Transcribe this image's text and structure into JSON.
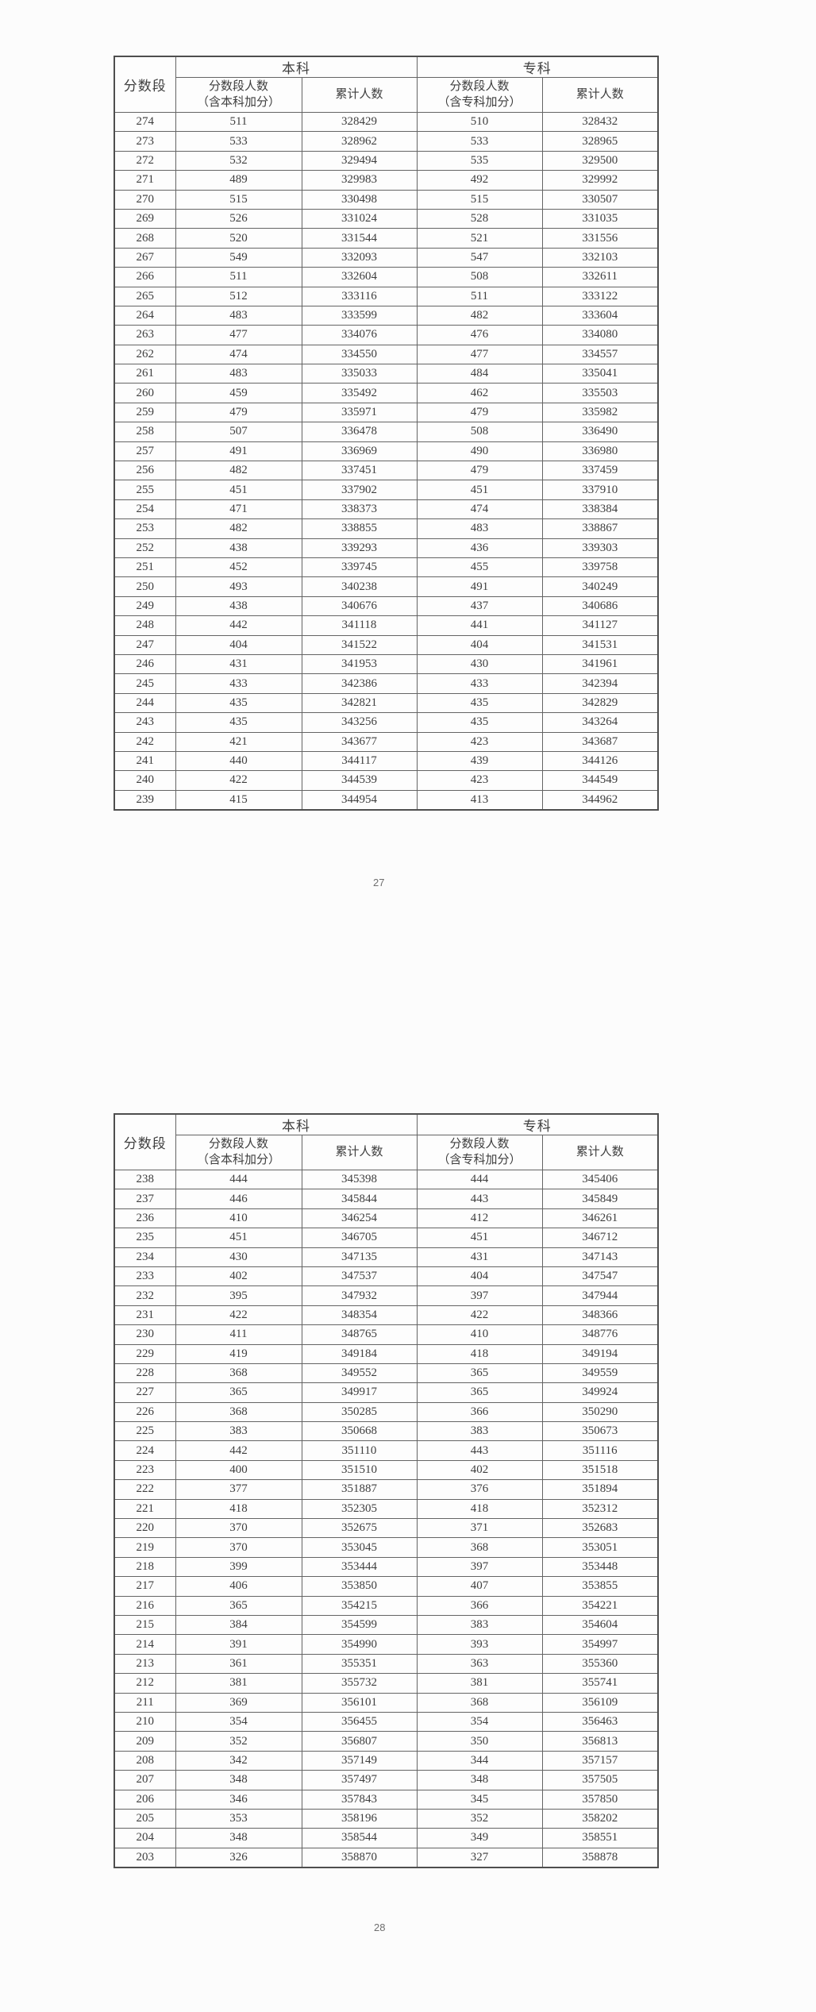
{
  "document": {
    "background_color": "#fcfcfc",
    "text_color": "#3e3e3e",
    "border_color": "#646464",
    "page_number_color": "#6e6e6e"
  },
  "header_labels": {
    "score_band": "分数段",
    "undergrad_group": "本科",
    "college_group": "专科",
    "undergrad_count": "分数段人数\n（含本科加分）",
    "college_count": "分数段人数\n（含专科加分）",
    "cumulative": "累计人数"
  },
  "pages": [
    {
      "page_number": "27",
      "rows": [
        [
          274,
          511,
          328429,
          510,
          328432
        ],
        [
          273,
          533,
          328962,
          533,
          328965
        ],
        [
          272,
          532,
          329494,
          535,
          329500
        ],
        [
          271,
          489,
          329983,
          492,
          329992
        ],
        [
          270,
          515,
          330498,
          515,
          330507
        ],
        [
          269,
          526,
          331024,
          528,
          331035
        ],
        [
          268,
          520,
          331544,
          521,
          331556
        ],
        [
          267,
          549,
          332093,
          547,
          332103
        ],
        [
          266,
          511,
          332604,
          508,
          332611
        ],
        [
          265,
          512,
          333116,
          511,
          333122
        ],
        [
          264,
          483,
          333599,
          482,
          333604
        ],
        [
          263,
          477,
          334076,
          476,
          334080
        ],
        [
          262,
          474,
          334550,
          477,
          334557
        ],
        [
          261,
          483,
          335033,
          484,
          335041
        ],
        [
          260,
          459,
          335492,
          462,
          335503
        ],
        [
          259,
          479,
          335971,
          479,
          335982
        ],
        [
          258,
          507,
          336478,
          508,
          336490
        ],
        [
          257,
          491,
          336969,
          490,
          336980
        ],
        [
          256,
          482,
          337451,
          479,
          337459
        ],
        [
          255,
          451,
          337902,
          451,
          337910
        ],
        [
          254,
          471,
          338373,
          474,
          338384
        ],
        [
          253,
          482,
          338855,
          483,
          338867
        ],
        [
          252,
          438,
          339293,
          436,
          339303
        ],
        [
          251,
          452,
          339745,
          455,
          339758
        ],
        [
          250,
          493,
          340238,
          491,
          340249
        ],
        [
          249,
          438,
          340676,
          437,
          340686
        ],
        [
          248,
          442,
          341118,
          441,
          341127
        ],
        [
          247,
          404,
          341522,
          404,
          341531
        ],
        [
          246,
          431,
          341953,
          430,
          341961
        ],
        [
          245,
          433,
          342386,
          433,
          342394
        ],
        [
          244,
          435,
          342821,
          435,
          342829
        ],
        [
          243,
          435,
          343256,
          435,
          343264
        ],
        [
          242,
          421,
          343677,
          423,
          343687
        ],
        [
          241,
          440,
          344117,
          439,
          344126
        ],
        [
          240,
          422,
          344539,
          423,
          344549
        ],
        [
          239,
          415,
          344954,
          413,
          344962
        ]
      ]
    },
    {
      "page_number": "28",
      "rows": [
        [
          238,
          444,
          345398,
          444,
          345406
        ],
        [
          237,
          446,
          345844,
          443,
          345849
        ],
        [
          236,
          410,
          346254,
          412,
          346261
        ],
        [
          235,
          451,
          346705,
          451,
          346712
        ],
        [
          234,
          430,
          347135,
          431,
          347143
        ],
        [
          233,
          402,
          347537,
          404,
          347547
        ],
        [
          232,
          395,
          347932,
          397,
          347944
        ],
        [
          231,
          422,
          348354,
          422,
          348366
        ],
        [
          230,
          411,
          348765,
          410,
          348776
        ],
        [
          229,
          419,
          349184,
          418,
          349194
        ],
        [
          228,
          368,
          349552,
          365,
          349559
        ],
        [
          227,
          365,
          349917,
          365,
          349924
        ],
        [
          226,
          368,
          350285,
          366,
          350290
        ],
        [
          225,
          383,
          350668,
          383,
          350673
        ],
        [
          224,
          442,
          351110,
          443,
          351116
        ],
        [
          223,
          400,
          351510,
          402,
          351518
        ],
        [
          222,
          377,
          351887,
          376,
          351894
        ],
        [
          221,
          418,
          352305,
          418,
          352312
        ],
        [
          220,
          370,
          352675,
          371,
          352683
        ],
        [
          219,
          370,
          353045,
          368,
          353051
        ],
        [
          218,
          399,
          353444,
          397,
          353448
        ],
        [
          217,
          406,
          353850,
          407,
          353855
        ],
        [
          216,
          365,
          354215,
          366,
          354221
        ],
        [
          215,
          384,
          354599,
          383,
          354604
        ],
        [
          214,
          391,
          354990,
          393,
          354997
        ],
        [
          213,
          361,
          355351,
          363,
          355360
        ],
        [
          212,
          381,
          355732,
          381,
          355741
        ],
        [
          211,
          369,
          356101,
          368,
          356109
        ],
        [
          210,
          354,
          356455,
          354,
          356463
        ],
        [
          209,
          352,
          356807,
          350,
          356813
        ],
        [
          208,
          342,
          357149,
          344,
          357157
        ],
        [
          207,
          348,
          357497,
          348,
          357505
        ],
        [
          206,
          346,
          357843,
          345,
          357850
        ],
        [
          205,
          353,
          358196,
          352,
          358202
        ],
        [
          204,
          348,
          358544,
          349,
          358551
        ],
        [
          203,
          326,
          358870,
          327,
          358878
        ]
      ]
    }
  ]
}
